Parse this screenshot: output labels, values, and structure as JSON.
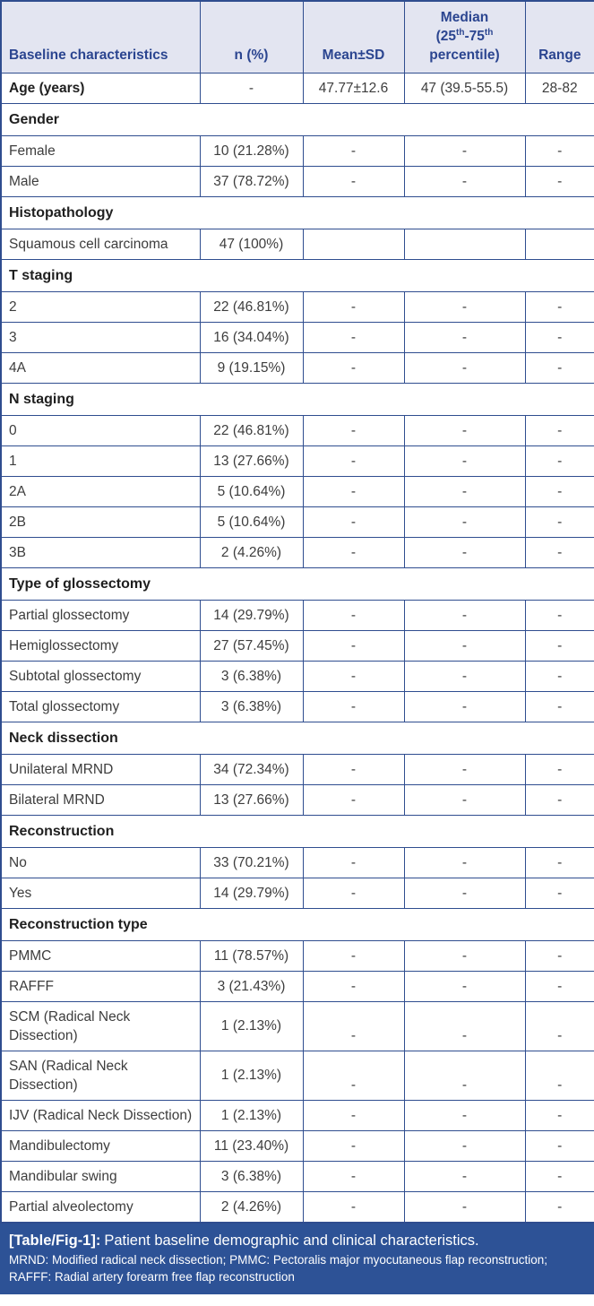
{
  "colors": {
    "border": "#2f4d8f",
    "header_bg": "#e3e5f1",
    "header_text": "#2b4590",
    "footer_bg": "#2d5296",
    "footer_text": "#ffffff",
    "body_text": "#3d3d3d",
    "section_text": "#1f1f1f"
  },
  "table": {
    "header": {
      "col1": "Baseline characteristics",
      "col2": "n (%)",
      "col3": "Mean±SD",
      "median_line1": "Median",
      "median_l2a": "(25",
      "median_sup1": "th",
      "median_l2b": "-75",
      "median_sup2": "th",
      "median_line3": "percentile)",
      "col5": "Range"
    },
    "rows": [
      {
        "type": "data",
        "label": "Age (years)",
        "bold": true,
        "n": "-",
        "mean": "47.77±12.6",
        "median": "47 (39.5-55.5)",
        "range": "28-82"
      },
      {
        "type": "section",
        "label": "Gender"
      },
      {
        "type": "data",
        "label": "Female",
        "n": "10 (21.28%)",
        "mean": "-",
        "median": "-",
        "range": "-"
      },
      {
        "type": "data",
        "label": "Male",
        "n": "37 (78.72%)",
        "mean": "-",
        "median": "-",
        "range": "-"
      },
      {
        "type": "section",
        "label": "Histopathology"
      },
      {
        "type": "data",
        "label": "Squamous cell carcinoma",
        "n": "47 (100%)",
        "mean": "",
        "median": "",
        "range": ""
      },
      {
        "type": "section",
        "label": "T staging"
      },
      {
        "type": "data",
        "label": "2",
        "n": "22 (46.81%)",
        "mean": "-",
        "median": "-",
        "range": "-"
      },
      {
        "type": "data",
        "label": "3",
        "n": "16 (34.04%)",
        "mean": "-",
        "median": "-",
        "range": "-"
      },
      {
        "type": "data",
        "label": "4A",
        "n": "9 (19.15%)",
        "mean": "-",
        "median": "-",
        "range": "-"
      },
      {
        "type": "section",
        "label": "N staging"
      },
      {
        "type": "data",
        "label": "0",
        "n": "22 (46.81%)",
        "mean": "-",
        "median": "-",
        "range": "-"
      },
      {
        "type": "data",
        "label": "1",
        "n": "13 (27.66%)",
        "mean": "-",
        "median": "-",
        "range": "-"
      },
      {
        "type": "data",
        "label": "2A",
        "n": "5 (10.64%)",
        "mean": "-",
        "median": "-",
        "range": "-"
      },
      {
        "type": "data",
        "label": "2B",
        "n": "5 (10.64%)",
        "mean": "-",
        "median": "-",
        "range": "-"
      },
      {
        "type": "data",
        "label": "3B",
        "n": "2 (4.26%)",
        "mean": "-",
        "median": "-",
        "range": "-"
      },
      {
        "type": "section",
        "label": "Type of glossectomy"
      },
      {
        "type": "data",
        "label": "Partial glossectomy",
        "n": "14 (29.79%)",
        "mean": "-",
        "median": "-",
        "range": "-"
      },
      {
        "type": "data",
        "label": "Hemiglossectomy",
        "n": "27 (57.45%)",
        "mean": "-",
        "median": "-",
        "range": "-"
      },
      {
        "type": "data",
        "label": "Subtotal glossectomy",
        "n": "3 (6.38%)",
        "mean": "-",
        "median": "-",
        "range": "-"
      },
      {
        "type": "data",
        "label": "Total glossectomy",
        "n": "3 (6.38%)",
        "mean": "-",
        "median": "-",
        "range": "-"
      },
      {
        "type": "section",
        "label": "Neck dissection"
      },
      {
        "type": "data",
        "label": "Unilateral MRND",
        "n": "34 (72.34%)",
        "mean": "-",
        "median": "-",
        "range": "-"
      },
      {
        "type": "data",
        "label": "Bilateral MRND",
        "n": "13 (27.66%)",
        "mean": "-",
        "median": "-",
        "range": "-"
      },
      {
        "type": "section",
        "label": "Reconstruction"
      },
      {
        "type": "data",
        "label": "No",
        "n": "33 (70.21%)",
        "mean": "-",
        "median": "-",
        "range": "-"
      },
      {
        "type": "data",
        "label": "Yes",
        "n": "14 (29.79%)",
        "mean": "-",
        "median": "-",
        "range": "-"
      },
      {
        "type": "section",
        "label": "Reconstruction type"
      },
      {
        "type": "data",
        "label": "PMMC",
        "n": "11 (78.57%)",
        "mean": "-",
        "median": "-",
        "range": "-"
      },
      {
        "type": "data",
        "label": "RAFFF",
        "n": "3 (21.43%)",
        "mean": "-",
        "median": "-",
        "range": "-"
      },
      {
        "type": "data",
        "label": "SCM (Radical Neck Dissection)",
        "multiline": true,
        "n": "1 (2.13%)",
        "mean": "-",
        "median": "-",
        "range": "-"
      },
      {
        "type": "data",
        "label": "SAN (Radical Neck Dissection)",
        "multiline": true,
        "n": "1 (2.13%)",
        "mean": "-",
        "median": "-",
        "range": "-"
      },
      {
        "type": "data",
        "label": "IJV (Radical Neck Dissection)",
        "multiline": true,
        "n": "1 (2.13%)",
        "mean": "-",
        "median": "-",
        "range": "-"
      },
      {
        "type": "data",
        "label": "Mandibulectomy",
        "n": "11 (23.40%)",
        "mean": "-",
        "median": "-",
        "range": "-"
      },
      {
        "type": "data",
        "label": "Mandibular swing",
        "n": "3 (6.38%)",
        "mean": "-",
        "median": "-",
        "range": "-"
      },
      {
        "type": "data",
        "label": "Partial alveolectomy",
        "n": "2 (4.26%)",
        "mean": "-",
        "median": "-",
        "range": "-"
      }
    ]
  },
  "footer": {
    "label": "[Table/Fig-1]:",
    "caption": "Patient baseline demographic and clinical characteristics.",
    "note_line1": "MRND: Modified radical neck dissection; PMMC: Pectoralis major myocutaneous flap reconstruction;",
    "note_line2": "RAFFF: Radial artery forearm free flap reconstruction"
  }
}
